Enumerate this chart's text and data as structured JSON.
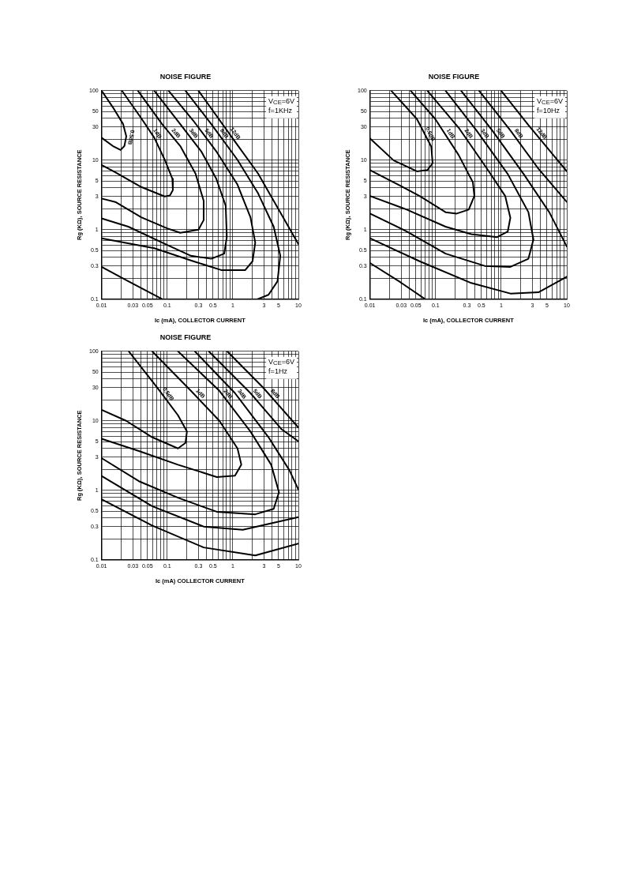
{
  "chart_data": [
    {
      "type": "line",
      "title": "NOISE FIGURE",
      "xlabel": "Ic (mA), COLLECTOR CURRENT",
      "ylabel": "Rg (KΩ), SOURCE RESISTANCE",
      "log": "xy",
      "grid": true,
      "legend": false,
      "xlim": [
        0.01,
        10
      ],
      "ylim": [
        0.1,
        100
      ],
      "xticks": [
        0.01,
        {
          "value": 0.02,
          "label": null
        },
        0.03,
        {
          "value": 0.04,
          "label": null
        },
        0.05,
        {
          "value": 0.06,
          "label": null
        },
        {
          "value": 0.07,
          "label": null
        },
        {
          "value": 0.08,
          "label": null
        },
        {
          "value": 0.09,
          "label": null
        },
        0.1,
        {
          "value": 0.2,
          "label": null
        },
        0.3,
        {
          "value": 0.4,
          "label": null
        },
        0.5,
        {
          "value": 0.6,
          "label": null
        },
        {
          "value": 0.7,
          "label": null
        },
        {
          "value": 0.8,
          "label": null
        },
        {
          "value": 0.9,
          "label": null
        },
        1,
        {
          "value": 2,
          "label": null
        },
        3,
        {
          "value": 4,
          "label": null
        },
        5,
        {
          "value": 6,
          "label": null
        },
        {
          "value": 7,
          "label": null
        },
        {
          "value": 8,
          "label": null
        },
        {
          "value": 9,
          "label": null
        },
        10
      ],
      "yticks": [
        0.1,
        {
          "value": 0.2,
          "label": null
        },
        0.3,
        {
          "value": 0.4,
          "label": null
        },
        0.5,
        {
          "value": 0.6,
          "label": null
        },
        {
          "value": 0.7,
          "label": null
        },
        {
          "value": 0.8,
          "label": null
        },
        {
          "value": 0.9,
          "label": null
        },
        1,
        {
          "value": 2,
          "label": null
        },
        3,
        {
          "value": 4,
          "label": null
        },
        5,
        {
          "value": 6,
          "label": null
        },
        {
          "value": 7,
          "label": null
        },
        {
          "value": 8,
          "label": null
        },
        {
          "value": 9,
          "label": null
        },
        10,
        {
          "value": 20,
          "label": null
        },
        30,
        {
          "value": 40,
          "label": null
        },
        50,
        {
          "value": 60,
          "label": null
        },
        {
          "value": 70,
          "label": null
        },
        {
          "value": 80,
          "label": null
        },
        {
          "value": 90,
          "label": null
        },
        100
      ],
      "annotations": [
        "V$_{CE}$=6V",
        "f=1KHz"
      ],
      "series": [
        {
          "name": "0.5dB",
          "color": "#000000",
          "x": [
            0.01,
            0.0148,
            0.0213,
            0.0238,
            0.0223,
            0.0195,
            0.0148,
            0.01
          ],
          "values": [
            100,
            58,
            33,
            22,
            16,
            14,
            16,
            21
          ]
        },
        {
          "name": "1dB",
          "color": "#000000",
          "x": [
            0.0204,
            0.0403,
            0.0636,
            0.0915,
            0.12,
            0.122,
            0.11,
            0.0915,
            0.0403,
            0.0162,
            0.01
          ],
          "values": [
            100,
            40,
            21,
            10.2,
            5.4,
            3.7,
            3.1,
            3.0,
            4.1,
            6.7,
            8.5
          ]
        },
        {
          "name": "2dB",
          "color": "#000000",
          "x": [
            0.0358,
            0.0836,
            0.158,
            0.27,
            0.36,
            0.36,
            0.3,
            0.158,
            0.1,
            0.0403,
            0.0162,
            0.01
          ],
          "values": [
            100,
            33,
            16,
            6.4,
            2.6,
            1.37,
            1.0,
            0.9,
            1.04,
            1.5,
            2.5,
            2.8
          ]
        },
        {
          "name": "3dB",
          "color": "#000000",
          "x": [
            0.0636,
            0.158,
            0.33,
            0.56,
            0.78,
            0.81,
            0.74,
            0.47,
            0.23,
            0.1,
            0.0256,
            0.01
          ],
          "values": [
            100,
            33,
            13.4,
            5.4,
            2.2,
            0.78,
            0.45,
            0.38,
            0.42,
            0.6,
            1.1,
            1.45
          ]
        },
        {
          "name": "5dB",
          "color": "#000000",
          "x": [
            0.105,
            0.25,
            0.56,
            1.17,
            1.86,
            2.2,
            2.0,
            1.54,
            0.68,
            0.25,
            0.0636,
            0.01
          ],
          "values": [
            100,
            37,
            13.4,
            4.5,
            1.5,
            0.65,
            0.35,
            0.26,
            0.26,
            0.35,
            0.54,
            0.75
          ]
        },
        {
          "name": "8dB",
          "color": "#000000",
          "x": [
            0.19,
            0.47,
            1.17,
            2.4,
            4.2,
            5.3,
            4.8,
            3.5,
            2.4,
            1,
            0.01,
            0.0256,
            0.0836
          ],
          "values": [
            100,
            33,
            10.2,
            3.4,
            1.1,
            0.42,
            0.18,
            0.115,
            0.1,
            null,
            0.29,
            0.18,
            0.1
          ]
        },
        {
          "name": "12dB",
          "color": "#000000",
          "x": [
            0.3,
            0.98,
            2.43,
            10
          ],
          "values": [
            100,
            21,
            6.4,
            0.62
          ]
        }
      ]
    },
    {
      "type": "line",
      "title": "NOISE FIGURE",
      "xlabel": "Ic (mA), COLLECTOR CURRENT",
      "ylabel": "Rg (KΩ), SOURCE RESISTANCE",
      "log": "xy",
      "grid": true,
      "legend": false,
      "xlim": [
        0.01,
        10
      ],
      "ylim": [
        0.1,
        100
      ],
      "xticks": [
        0.01,
        {
          "value": 0.02,
          "label": null
        },
        0.03,
        {
          "value": 0.04,
          "label": null
        },
        0.05,
        {
          "value": 0.06,
          "label": null
        },
        {
          "value": 0.07,
          "label": null
        },
        {
          "value": 0.08,
          "label": null
        },
        {
          "value": 0.09,
          "label": null
        },
        0.1,
        {
          "value": 0.2,
          "label": null
        },
        0.3,
        {
          "value": 0.4,
          "label": null
        },
        0.5,
        {
          "value": 0.6,
          "label": null
        },
        {
          "value": 0.7,
          "label": null
        },
        {
          "value": 0.8,
          "label": null
        },
        {
          "value": 0.9,
          "label": null
        },
        1,
        {
          "value": 2,
          "label": null
        },
        3,
        {
          "value": 4,
          "label": null
        },
        5,
        {
          "value": 6,
          "label": null
        },
        {
          "value": 7,
          "label": null
        },
        {
          "value": 8,
          "label": null
        },
        {
          "value": 9,
          "label": null
        },
        10
      ],
      "yticks": [
        0.1,
        {
          "value": 0.2,
          "label": null
        },
        0.3,
        {
          "value": 0.4,
          "label": null
        },
        0.5,
        {
          "value": 0.6,
          "label": null
        },
        {
          "value": 0.7,
          "label": null
        },
        {
          "value": 0.8,
          "label": null
        },
        {
          "value": 0.9,
          "label": null
        },
        1,
        {
          "value": 2,
          "label": null
        },
        3,
        {
          "value": 4,
          "label": null
        },
        5,
        {
          "value": 6,
          "label": null
        },
        {
          "value": 7,
          "label": null
        },
        {
          "value": 8,
          "label": null
        },
        {
          "value": 9,
          "label": null
        },
        10,
        {
          "value": 20,
          "label": null
        },
        30,
        {
          "value": 40,
          "label": null
        },
        50,
        {
          "value": 60,
          "label": null
        },
        {
          "value": 70,
          "label": null
        },
        {
          "value": 80,
          "label": null
        },
        {
          "value": 90,
          "label": null
        },
        100
      ],
      "annotations": [
        "V$_{CE}$=6V",
        "f=10Hz"
      ],
      "series": [
        {
          "name": "0.5dB",
          "color": "#000000",
          "x": [
            0.0211,
            0.052,
            0.086,
            0.09,
            0.075,
            0.052,
            0.023,
            0.01
          ],
          "values": [
            100,
            39,
            15.6,
            9.0,
            7.2,
            6.9,
            9.9,
            20.5
          ]
        },
        {
          "name": "1dB",
          "color": "#000000",
          "x": [
            0.0417,
            0.099,
            0.224,
            0.37,
            0.39,
            0.32,
            0.21,
            0.142,
            0.057,
            0.023,
            0.01
          ],
          "values": [
            100,
            39,
            11.9,
            4.8,
            3.05,
            1.94,
            1.7,
            1.78,
            3.05,
            4.8,
            7.2
          ]
        },
        {
          "name": "2dB",
          "color": "#000000",
          "x": [
            0.075,
            0.224,
            0.61,
            1.15,
            1.38,
            1.26,
            0.87,
            0.35,
            0.142,
            0.0364,
            0.01
          ],
          "values": [
            100,
            29.4,
            7.5,
            3.05,
            1.48,
            0.94,
            0.78,
            0.86,
            1.1,
            1.94,
            3.05
          ]
        },
        {
          "name": "3dB",
          "color": "#000000",
          "x": [
            0.142,
            0.42,
            1.26,
            2.6,
            3.1,
            2.6,
            1.38,
            0.56,
            0.142,
            0.0364,
            0.01
          ],
          "values": [
            100,
            26.8,
            6.3,
            1.78,
            0.72,
            0.38,
            0.29,
            0.3,
            0.45,
            0.94,
            1.7
          ]
        },
        {
          "name": "5dB",
          "color": "#000000",
          "x": [
            0.245,
            0.73,
            2.2,
            5.4,
            10,
            1,
            0.01,
            0.057,
            0.35,
            1.38,
            3.7,
            10
          ],
          "values": [
            100,
            26.8,
            6.3,
            1.78,
            0.57,
            null,
            0.75,
            0.35,
            0.17,
            0.12,
            0.125,
            0.21
          ]
        },
        {
          "name": "8dB",
          "color": "#000000",
          "x": [
            0.46,
            1.38,
            3.7,
            10,
            1,
            0.01,
            0.0277,
            0.069
          ],
          "values": [
            100,
            26.8,
            7.5,
            2.5,
            null,
            0.33,
            0.18,
            0.1
          ]
        },
        {
          "name": "12dB",
          "color": "#000000",
          "x": [
            1.0,
            2.6,
            10
          ],
          "values": [
            100,
            32,
            6.9
          ]
        }
      ]
    },
    {
      "type": "line",
      "title": "NOISE FIGURE",
      "xlabel": "Ic (mA) COLLECTOR CURRENT",
      "ylabel": "Rg (KΩ), SOURCE RESISTANCE",
      "log": "xy",
      "grid": true,
      "legend": false,
      "xlim": [
        0.01,
        10
      ],
      "ylim": [
        0.1,
        100
      ],
      "xticks": [
        0.01,
        {
          "value": 0.02,
          "label": null
        },
        0.03,
        {
          "value": 0.04,
          "label": null
        },
        0.05,
        {
          "value": 0.06,
          "label": null
        },
        {
          "value": 0.07,
          "label": null
        },
        {
          "value": 0.08,
          "label": null
        },
        {
          "value": 0.09,
          "label": null
        },
        0.1,
        {
          "value": 0.2,
          "label": null
        },
        0.3,
        {
          "value": 0.4,
          "label": null
        },
        0.5,
        {
          "value": 0.6,
          "label": null
        },
        {
          "value": 0.7,
          "label": null
        },
        {
          "value": 0.8,
          "label": null
        },
        {
          "value": 0.9,
          "label": null
        },
        1,
        {
          "value": 2,
          "label": null
        },
        3,
        {
          "value": 4,
          "label": null
        },
        5,
        {
          "value": 6,
          "label": null
        },
        {
          "value": 7,
          "label": null
        },
        {
          "value": 8,
          "label": null
        },
        {
          "value": 9,
          "label": null
        },
        10
      ],
      "yticks": [
        0.1,
        {
          "value": 0.2,
          "label": null
        },
        0.3,
        {
          "value": 0.4,
          "label": null
        },
        0.5,
        {
          "value": 0.6,
          "label": null
        },
        {
          "value": 0.7,
          "label": null
        },
        {
          "value": 0.8,
          "label": null
        },
        {
          "value": 0.9,
          "label": null
        },
        1,
        {
          "value": 2,
          "label": null
        },
        3,
        {
          "value": 4,
          "label": null
        },
        5,
        {
          "value": 6,
          "label": null
        },
        {
          "value": 7,
          "label": null
        },
        {
          "value": 8,
          "label": null
        },
        {
          "value": 9,
          "label": null
        },
        10,
        {
          "value": 20,
          "label": null
        },
        30,
        {
          "value": 40,
          "label": null
        },
        50,
        {
          "value": 60,
          "label": null
        },
        {
          "value": 70,
          "label": null
        },
        {
          "value": 80,
          "label": null
        },
        {
          "value": 90,
          "label": null
        },
        100
      ],
      "annotations": [
        "V$_{CE}$=6V",
        "f=1Hz"
      ],
      "series": [
        {
          "name": "0.5dB",
          "color": "#000000",
          "x": [
            0.026,
            0.0707,
            0.146,
            0.2,
            0.19,
            0.146,
            0.059,
            0.0237,
            0.01
          ],
          "values": [
            100,
            30,
            12,
            7.0,
            4.8,
            4.0,
            5.8,
            10,
            14.4
          ]
        },
        {
          "name": "1dB",
          "color": "#000000",
          "x": [
            0.059,
            0.23,
            0.625,
            1.18,
            1.35,
            1.08,
            0.57,
            0.146,
            0.037,
            0.01
          ],
          "values": [
            100,
            27,
            10,
            4.0,
            2.33,
            1.62,
            1.55,
            2.33,
            3.67,
            5.5
          ]
        },
        {
          "name": "2dB",
          "color": "#000000",
          "x": [
            0.146,
            0.625,
            1.86,
            3.85,
            5.06,
            4.2,
            2.2,
            0.57,
            0.146,
            0.037,
            0.01
          ],
          "values": [
            100,
            27,
            7.0,
            2.33,
            0.935,
            0.54,
            0.45,
            0.49,
            0.78,
            1.35,
            2.9
          ]
        },
        {
          "name": "3dB",
          "color": "#000000",
          "x": [
            0.264,
            1.08,
            3.5,
            7.3,
            10,
            1,
            0.01,
            0.059,
            0.36,
            1.42,
            10
          ],
          "values": [
            100,
            25,
            5.8,
            1.94,
            1.02,
            null,
            1.6,
            0.59,
            0.3,
            0.27,
            0.41
          ]
        },
        {
          "name": "5dB",
          "color": "#000000",
          "x": [
            0.43,
            1.86,
            5.5,
            10,
            1,
            0.01,
            0.059,
            0.36,
            2.2,
            10
          ],
          "values": [
            100,
            25,
            7.6,
            5.06,
            null,
            0.74,
            0.31,
            0.15,
            0.115,
            0.17
          ]
        },
        {
          "name": "8dB",
          "color": "#000000",
          "x": [
            0.82,
            2.9,
            10
          ],
          "values": [
            100,
            30,
            8.0
          ]
        }
      ]
    }
  ]
}
